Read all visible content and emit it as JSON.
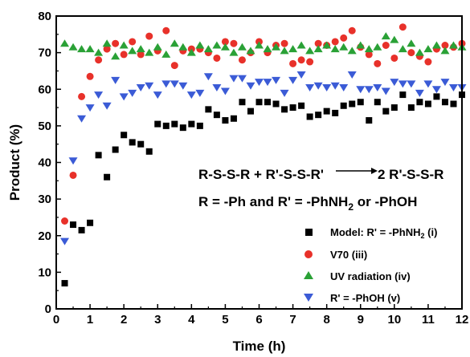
{
  "chart_data": {
    "type": "scatter",
    "xlabel": "Time (h)",
    "ylabel": "Product (%)",
    "xlim": [
      0,
      12
    ],
    "ylim": [
      0,
      80
    ],
    "xticks": [
      0,
      1,
      2,
      3,
      4,
      5,
      6,
      7,
      8,
      9,
      10,
      11,
      12
    ],
    "yticks": [
      0,
      10,
      20,
      30,
      40,
      50,
      60,
      70,
      80
    ],
    "grid": false,
    "legend_position": "bottom-right",
    "annotation": {
      "reaction_left": "R-S-S-R + R'-S-S-R'",
      "reaction_right": "2 R'-S-S-R",
      "definition_prefix": "R = -Ph  and R' = -PhNH",
      "definition_sub": "2",
      "definition_suffix": " or -PhOH"
    },
    "series": [
      {
        "name_prefix": "Model: R' = -PhNH",
        "name_sub": "2",
        "name_suffix": " (i)",
        "marker": "square",
        "color": "#000000",
        "points": [
          [
            0.25,
            7
          ],
          [
            0.5,
            23
          ],
          [
            0.75,
            21.5
          ],
          [
            1.0,
            23.5
          ],
          [
            1.25,
            42
          ],
          [
            1.5,
            36
          ],
          [
            1.75,
            43.5
          ],
          [
            2.0,
            47.5
          ],
          [
            2.25,
            45.5
          ],
          [
            2.5,
            45
          ],
          [
            2.75,
            43
          ],
          [
            3.0,
            50.5
          ],
          [
            3.25,
            50
          ],
          [
            3.5,
            50.5
          ],
          [
            3.75,
            49.5
          ],
          [
            4.0,
            50.5
          ],
          [
            4.25,
            50
          ],
          [
            4.5,
            54.5
          ],
          [
            4.75,
            53
          ],
          [
            5.0,
            51.5
          ],
          [
            5.25,
            52
          ],
          [
            5.5,
            56.5
          ],
          [
            5.75,
            54
          ],
          [
            6.0,
            56.5
          ],
          [
            6.25,
            56.5
          ],
          [
            6.5,
            56
          ],
          [
            6.75,
            54.5
          ],
          [
            7.0,
            55
          ],
          [
            7.25,
            55.5
          ],
          [
            7.5,
            52.5
          ],
          [
            7.75,
            53
          ],
          [
            8.0,
            54
          ],
          [
            8.25,
            53.5
          ],
          [
            8.5,
            55.5
          ],
          [
            8.75,
            56
          ],
          [
            9.0,
            56.5
          ],
          [
            9.25,
            51.5
          ],
          [
            9.5,
            56.5
          ],
          [
            9.75,
            54
          ],
          [
            10.0,
            55
          ],
          [
            10.25,
            58.5
          ],
          [
            10.5,
            55
          ],
          [
            10.75,
            56.5
          ],
          [
            11.0,
            56
          ],
          [
            11.25,
            58
          ],
          [
            11.5,
            56.5
          ],
          [
            11.75,
            56
          ],
          [
            12.0,
            58.5
          ]
        ]
      },
      {
        "name": "V70 (iii)",
        "marker": "circle",
        "color": "#e8312a",
        "points": [
          [
            0.25,
            24
          ],
          [
            0.5,
            36.5
          ],
          [
            0.75,
            58
          ],
          [
            1.0,
            63.5
          ],
          [
            1.25,
            68
          ],
          [
            1.5,
            71
          ],
          [
            1.75,
            72.5
          ],
          [
            2.0,
            69.5
          ],
          [
            2.25,
            73
          ],
          [
            2.5,
            69.5
          ],
          [
            2.75,
            74.5
          ],
          [
            3.0,
            70.5
          ],
          [
            3.25,
            76
          ],
          [
            3.5,
            66.5
          ],
          [
            3.75,
            70.5
          ],
          [
            4.0,
            71
          ],
          [
            4.25,
            71
          ],
          [
            4.5,
            70
          ],
          [
            4.75,
            68.5
          ],
          [
            5.0,
            73
          ],
          [
            5.25,
            72.5
          ],
          [
            5.5,
            68
          ],
          [
            5.75,
            70
          ],
          [
            6.0,
            73
          ],
          [
            6.25,
            70
          ],
          [
            6.5,
            72
          ],
          [
            6.75,
            72.5
          ],
          [
            7.0,
            67
          ],
          [
            7.25,
            68
          ],
          [
            7.5,
            67.5
          ],
          [
            7.75,
            72.5
          ],
          [
            8.0,
            72
          ],
          [
            8.25,
            73
          ],
          [
            8.5,
            74
          ],
          [
            8.75,
            76
          ],
          [
            9.0,
            71.5
          ],
          [
            9.25,
            69.5
          ],
          [
            9.5,
            67
          ],
          [
            9.75,
            72
          ],
          [
            10.0,
            68.5
          ],
          [
            10.25,
            77
          ],
          [
            10.5,
            70
          ],
          [
            10.75,
            69
          ],
          [
            11.0,
            67.5
          ],
          [
            11.25,
            71
          ],
          [
            11.5,
            72
          ],
          [
            11.75,
            71.5
          ],
          [
            12.0,
            72.5
          ]
        ]
      },
      {
        "name": "UV radiation (iv)",
        "marker": "triangle-up",
        "color": "#2aa136",
        "points": [
          [
            0.25,
            72.5
          ],
          [
            0.5,
            71.5
          ],
          [
            0.75,
            71
          ],
          [
            1.0,
            71
          ],
          [
            1.25,
            70
          ],
          [
            1.5,
            72.5
          ],
          [
            1.75,
            69
          ],
          [
            2.0,
            72
          ],
          [
            2.25,
            70.5
          ],
          [
            2.5,
            71
          ],
          [
            2.75,
            70
          ],
          [
            3.0,
            71.5
          ],
          [
            3.25,
            69.5
          ],
          [
            3.5,
            72.5
          ],
          [
            3.75,
            71.5
          ],
          [
            4.0,
            70
          ],
          [
            4.25,
            72
          ],
          [
            4.5,
            71
          ],
          [
            4.75,
            72
          ],
          [
            5.0,
            71.5
          ],
          [
            5.25,
            70
          ],
          [
            5.5,
            71.5
          ],
          [
            5.75,
            70.5
          ],
          [
            6.0,
            72
          ],
          [
            6.25,
            71
          ],
          [
            6.5,
            71.5
          ],
          [
            6.75,
            70.5
          ],
          [
            7.0,
            71
          ],
          [
            7.25,
            72
          ],
          [
            7.5,
            70.5
          ],
          [
            7.75,
            71
          ],
          [
            8.0,
            72
          ],
          [
            8.25,
            71
          ],
          [
            8.5,
            71.5
          ],
          [
            8.75,
            70.5
          ],
          [
            9.0,
            72
          ],
          [
            9.25,
            71
          ],
          [
            9.5,
            71.5
          ],
          [
            9.75,
            74.5
          ],
          [
            10.0,
            73.5
          ],
          [
            10.25,
            71
          ],
          [
            10.5,
            72.5
          ],
          [
            10.75,
            70
          ],
          [
            11.0,
            71
          ],
          [
            11.25,
            72
          ],
          [
            11.5,
            70.5
          ],
          [
            11.75,
            72
          ],
          [
            12.0,
            71.5
          ]
        ]
      },
      {
        "name": "R' = -PhOH (v)",
        "marker": "triangle-down",
        "color": "#3b5bd6",
        "points": [
          [
            0.25,
            18.5
          ],
          [
            0.5,
            40.5
          ],
          [
            0.75,
            52
          ],
          [
            1.0,
            55
          ],
          [
            1.25,
            58.5
          ],
          [
            1.5,
            55.5
          ],
          [
            1.75,
            62.5
          ],
          [
            2.0,
            58
          ],
          [
            2.25,
            59
          ],
          [
            2.5,
            60.5
          ],
          [
            2.75,
            61
          ],
          [
            3.0,
            58.5
          ],
          [
            3.25,
            61.5
          ],
          [
            3.5,
            61.5
          ],
          [
            3.75,
            61
          ],
          [
            4.0,
            58.5
          ],
          [
            4.25,
            59
          ],
          [
            4.5,
            63.5
          ],
          [
            4.75,
            60.5
          ],
          [
            5.0,
            59.5
          ],
          [
            5.25,
            63
          ],
          [
            5.5,
            63
          ],
          [
            5.75,
            61
          ],
          [
            6.0,
            62
          ],
          [
            6.25,
            62
          ],
          [
            6.5,
            62.5
          ],
          [
            6.75,
            59
          ],
          [
            7.0,
            62.5
          ],
          [
            7.25,
            64
          ],
          [
            7.5,
            60.5
          ],
          [
            7.75,
            61
          ],
          [
            8.0,
            60.5
          ],
          [
            8.25,
            61
          ],
          [
            8.5,
            60.5
          ],
          [
            8.75,
            64
          ],
          [
            9.0,
            60
          ],
          [
            9.25,
            60
          ],
          [
            9.5,
            60.5
          ],
          [
            9.75,
            59.5
          ],
          [
            10.0,
            62
          ],
          [
            10.25,
            61.5
          ],
          [
            10.5,
            61.5
          ],
          [
            10.75,
            59
          ],
          [
            11.0,
            61.5
          ],
          [
            11.25,
            60
          ],
          [
            11.5,
            62
          ],
          [
            11.75,
            60.5
          ],
          [
            12.0,
            60.5
          ]
        ]
      }
    ]
  }
}
